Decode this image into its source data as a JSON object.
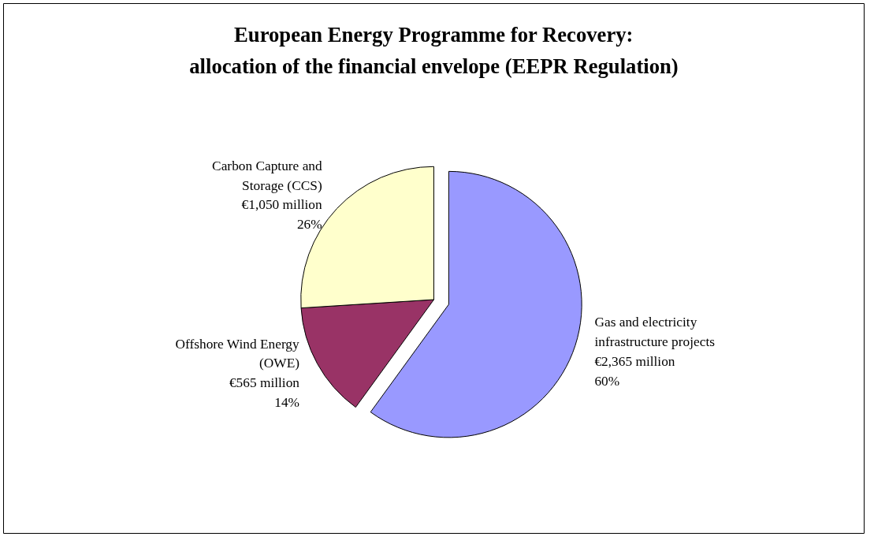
{
  "chart_data": {
    "type": "pie",
    "title": "European Energy Programme for Recovery: allocation of the financial envelope (EEPR Regulation)",
    "categories": [
      "Gas and electricity infrastructure projects",
      "Offshore Wind Energy (OWE)",
      "Carbon Capture and Storage (CCS)"
    ],
    "values": [
      60,
      14,
      26
    ],
    "colors": [
      "#9999ff",
      "#993366",
      "#ffffcc"
    ],
    "value_labels": [
      "60%",
      "14%",
      "26%"
    ],
    "annotations": [
      "€2,365 million",
      "€565 million",
      "€1,050 million"
    ]
  }
}
